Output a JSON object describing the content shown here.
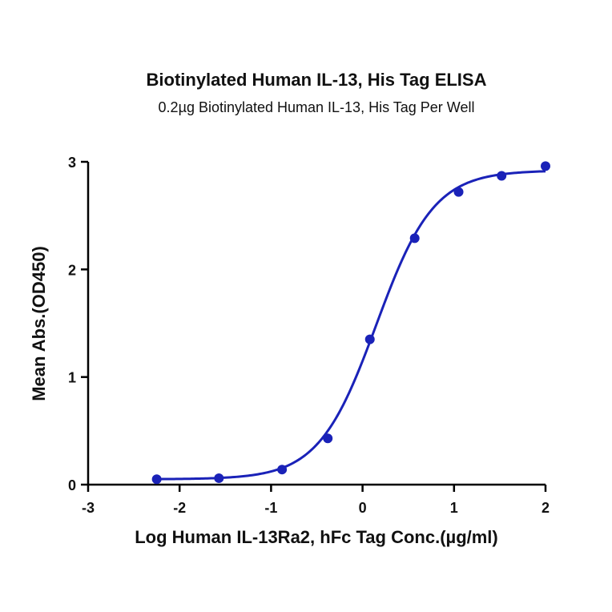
{
  "chart_data": {
    "type": "scatter",
    "title": "Biotinylated Human IL-13, His Tag ELISA",
    "subtitle": "0.2µg Biotinylated Human IL-13, His Tag Per Well",
    "xlabel": "Log Human IL-13Ra2, hFc Tag Conc.(µg/ml)",
    "ylabel": "Mean Abs.(OD450)",
    "xlim": [
      -3,
      2
    ],
    "ylim": [
      0,
      3
    ],
    "xticks": [
      -3,
      -2,
      -1,
      0,
      1,
      2
    ],
    "yticks": [
      0,
      1,
      2,
      3
    ],
    "grid": false,
    "color": "#1a22b8",
    "series": [
      {
        "x": [
          -2.25,
          -1.57,
          -0.88,
          -0.38,
          0.08,
          0.57,
          1.05,
          1.52,
          2.0
        ],
        "y": [
          0.05,
          0.06,
          0.14,
          0.43,
          1.35,
          2.29,
          2.72,
          2.87,
          2.96
        ],
        "fit": {
          "model": "4PL",
          "bottom": 0.05,
          "top": 2.92,
          "logEC50": 0.15,
          "hill": 1.38
        }
      }
    ]
  }
}
